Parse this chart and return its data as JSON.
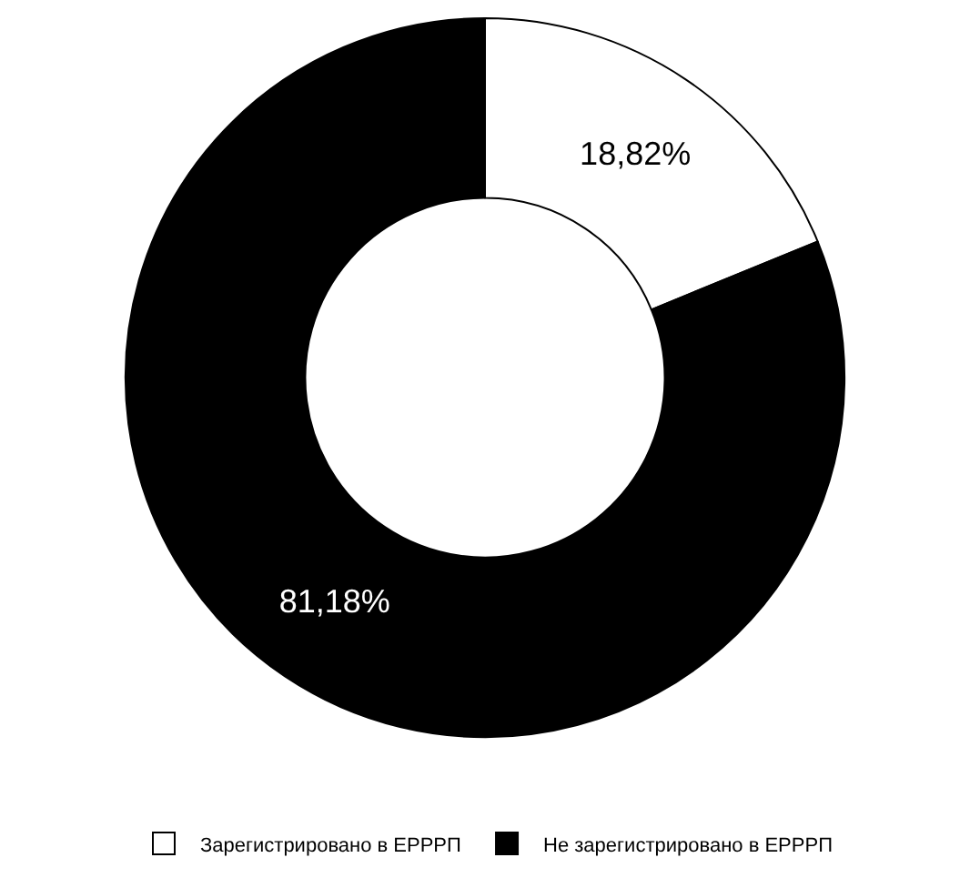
{
  "chart_data": {
    "type": "donut",
    "categories": [
      "Зарегистрировано в ЕРРРП",
      "Не зарегистрировано в ЕРРРП"
    ],
    "values": [
      18.82,
      81.18
    ],
    "colors": [
      "#ffffff",
      "#000000"
    ],
    "value_labels": [
      "18,82%",
      "81,18%"
    ],
    "legend": "bottom"
  }
}
